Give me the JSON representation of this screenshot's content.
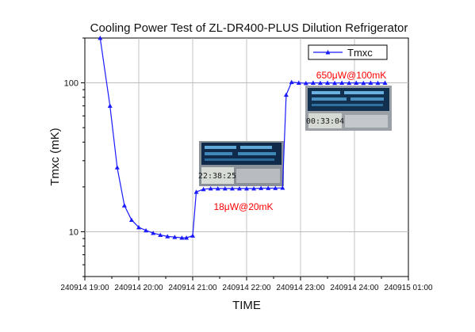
{
  "chart_data": {
    "type": "line",
    "title": "Cooling Power Test of ZL-DR400-PLUS Dilution Refrigerator",
    "xlabel": "TIME",
    "ylabel": "Tmxc (mK)",
    "yscale": "log",
    "ylim": [
      5,
      200
    ],
    "xlim": [
      "2024-09-14 19:00",
      "2024-09-15 01:00"
    ],
    "xticks": [
      {
        "t": "2024-09-14 19:00",
        "label": "240914 19:00"
      },
      {
        "t": "2024-09-14 20:00",
        "label": "240914 20:00"
      },
      {
        "t": "2024-09-14 21:00",
        "label": "240914 21:00"
      },
      {
        "t": "2024-09-14 22:00",
        "label": "240914 22:00"
      },
      {
        "t": "2024-09-14 23:00",
        "label": "240914 23:00"
      },
      {
        "t": "2024-09-15 00:00",
        "label": "240914 24:00"
      },
      {
        "t": "2024-09-15 01:00",
        "label": "240915 01:00"
      }
    ],
    "yticks": [
      {
        "v": 10,
        "label": "10"
      },
      {
        "v": 100,
        "label": "100"
      }
    ],
    "grid": true,
    "legend": {
      "placement": "top-right",
      "entries": [
        "Tmxc"
      ]
    },
    "color": "#1a1aff",
    "series": [
      {
        "name": "Tmxc",
        "points": [
          [
            "2024-09-14 19:17",
            200
          ],
          [
            "2024-09-14 19:28",
            70
          ],
          [
            "2024-09-14 19:36",
            27
          ],
          [
            "2024-09-14 19:44",
            15
          ],
          [
            "2024-09-14 19:52",
            12
          ],
          [
            "2024-09-14 20:00",
            10.7
          ],
          [
            "2024-09-14 20:08",
            10.2
          ],
          [
            "2024-09-14 20:16",
            9.8
          ],
          [
            "2024-09-14 20:24",
            9.5
          ],
          [
            "2024-09-14 20:32",
            9.3
          ],
          [
            "2024-09-14 20:40",
            9.2
          ],
          [
            "2024-09-14 20:48",
            9.1
          ],
          [
            "2024-09-14 20:53",
            9.1
          ],
          [
            "2024-09-14 21:00",
            9.4
          ],
          [
            "2024-09-14 21:04",
            18.5
          ],
          [
            "2024-09-14 21:12",
            19.3
          ],
          [
            "2024-09-14 21:20",
            19.5
          ],
          [
            "2024-09-14 21:28",
            19.5
          ],
          [
            "2024-09-14 21:36",
            19.5
          ],
          [
            "2024-09-14 21:44",
            19.5
          ],
          [
            "2024-09-14 21:52",
            19.5
          ],
          [
            "2024-09-14 22:00",
            19.5
          ],
          [
            "2024-09-14 22:08",
            19.5
          ],
          [
            "2024-09-14 22:16",
            19.6
          ],
          [
            "2024-09-14 22:24",
            19.6
          ],
          [
            "2024-09-14 22:32",
            19.6
          ],
          [
            "2024-09-14 22:40",
            19.7
          ],
          [
            "2024-09-14 22:44",
            83
          ],
          [
            "2024-09-14 22:50",
            101
          ],
          [
            "2024-09-14 22:58",
            100
          ],
          [
            "2024-09-14 23:06",
            99.5
          ],
          [
            "2024-09-14 23:14",
            100
          ],
          [
            "2024-09-14 23:22",
            99.8
          ],
          [
            "2024-09-14 23:30",
            100
          ],
          [
            "2024-09-14 23:38",
            99.7
          ],
          [
            "2024-09-14 23:46",
            100
          ],
          [
            "2024-09-14 23:54",
            99.8
          ],
          [
            "2024-09-15 00:02",
            100
          ],
          [
            "2024-09-15 00:10",
            99.6
          ],
          [
            "2024-09-15 00:18",
            100
          ],
          [
            "2024-09-15 00:26",
            99.8
          ],
          [
            "2024-09-15 00:34",
            100
          ]
        ]
      }
    ],
    "annotations": [
      {
        "text": "18μW@20mK",
        "color": "#ff0000"
      },
      {
        "text": "650μW@100mK",
        "color": "#ff0000"
      }
    ],
    "insets": [
      {
        "name": "photo-20mk",
        "lcd": "22:38:25"
      },
      {
        "name": "photo-100mk",
        "lcd": "00:33:04"
      }
    ]
  }
}
